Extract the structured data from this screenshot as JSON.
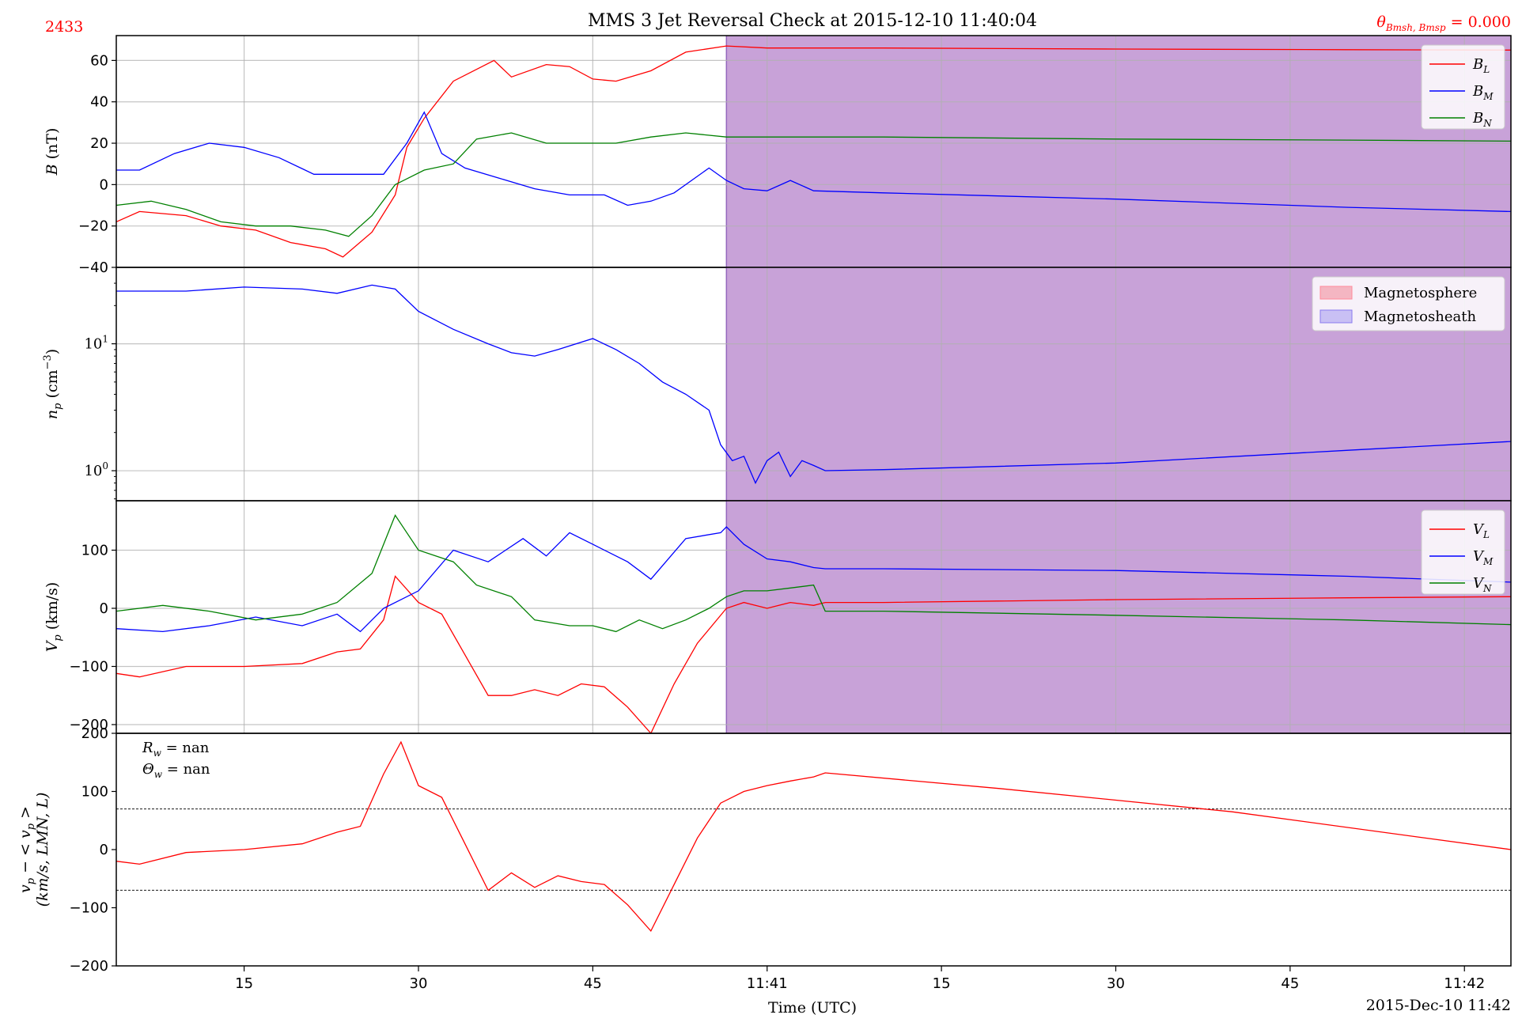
{
  "figure": {
    "title": "MMS 3 Jet Reversal Check at 2015-12-10 11:40:04",
    "corner_left": "2433",
    "corner_right": "θBₘₛₕ,Bₘₛₚ = 0.000",
    "corner_right_main": "θ",
    "corner_right_sub": "Bmsh, Bmsp",
    "corner_right_value": " = 0.000",
    "xlabel": "Time (UTC)",
    "date_label": "2015-Dec-10 11:42",
    "x_ticks": [
      {
        "t": 15,
        "label": "15"
      },
      {
        "t": 30,
        "label": "30"
      },
      {
        "t": 45,
        "label": "45"
      },
      {
        "t": 60,
        "label": "11:41"
      },
      {
        "t": 75,
        "label": "15"
      },
      {
        "t": 90,
        "label": "30"
      },
      {
        "t": 105,
        "label": "45"
      },
      {
        "t": 120,
        "label": "11:42"
      }
    ],
    "colors": {
      "red": "#ff0000",
      "blue": "#0000ff",
      "green": "#008000",
      "sheath": "#c8a2d8",
      "sheath_edge": "#9467bd"
    }
  },
  "chart_data": [
    {
      "type": "line",
      "panel": "B",
      "ylabel": "B (nT)",
      "ylim": [
        -40,
        72
      ],
      "y_ticks": [
        -40,
        -20,
        0,
        20,
        40,
        60
      ],
      "x_unit": "seconds after 11:40:00",
      "xlim": [
        4,
        124
      ],
      "shaded_region": {
        "x": [
          56.5,
          124
        ],
        "label": "Magnetosheath"
      },
      "legend": [
        "B_L",
        "B_M",
        "B_N"
      ],
      "series": [
        {
          "name": "B_L",
          "color": "#ff0000",
          "x": [
            4,
            6,
            8,
            10,
            13,
            16,
            19,
            22,
            23.5,
            26,
            28,
            29,
            30.5,
            33,
            36.5,
            38,
            41,
            43,
            45,
            47,
            50,
            53,
            56.5,
            60,
            63,
            70,
            90,
            110,
            124
          ],
          "y": [
            -18,
            -13,
            -14,
            -15,
            -20,
            -22,
            -28,
            -31,
            -35,
            -23,
            -5,
            18,
            32,
            50,
            60,
            52,
            58,
            57,
            51,
            50,
            55,
            64,
            67,
            66,
            66,
            66,
            65.5,
            65.2,
            65
          ]
        },
        {
          "name": "B_M",
          "color": "#0000ff",
          "x": [
            4,
            6,
            9,
            12,
            15,
            18,
            21,
            24,
            27,
            29,
            30.5,
            32,
            34,
            37,
            40,
            43,
            46,
            48,
            50,
            52,
            55,
            56.5,
            58,
            60,
            62,
            64,
            70,
            90,
            110,
            124
          ],
          "y": [
            7,
            7,
            15,
            20,
            18,
            13,
            5,
            5,
            5,
            20,
            35,
            15,
            8,
            3,
            -2,
            -5,
            -5,
            -10,
            -8,
            -4,
            8,
            2,
            -2,
            -3,
            2,
            -3,
            -4,
            -7,
            -11,
            -13
          ]
        },
        {
          "name": "B_N",
          "color": "#008000",
          "x": [
            4,
            7,
            10,
            13,
            16,
            19,
            22,
            24,
            26,
            28,
            30.5,
            33,
            35,
            38,
            41,
            44,
            47,
            50,
            53,
            56.5,
            60,
            64,
            70,
            90,
            110,
            124
          ],
          "y": [
            -10,
            -8,
            -12,
            -18,
            -20,
            -20,
            -22,
            -25,
            -15,
            0,
            7,
            10,
            22,
            25,
            20,
            20,
            20,
            23,
            25,
            23,
            23,
            23,
            23,
            22,
            21.5,
            21
          ]
        }
      ]
    },
    {
      "type": "line",
      "panel": "np",
      "ylabel": "n_p (cm^-3)",
      "yscale": "log",
      "ylim": [
        0.58,
        40
      ],
      "y_ticks": [
        {
          "v": 1,
          "label": "10^0"
        },
        {
          "v": 10,
          "label": "10^1"
        }
      ],
      "xlim": [
        4,
        124
      ],
      "shaded_region": {
        "x": [
          56.5,
          124
        ],
        "label": "Magnetosheath"
      },
      "legend": [
        "Magnetosphere",
        "Magnetosheath"
      ],
      "series": [
        {
          "name": "n_p",
          "color": "#0000ff",
          "x": [
            4,
            10,
            15,
            20,
            23,
            26,
            28,
            30,
            33,
            36,
            38,
            40,
            42,
            45,
            47,
            49,
            51,
            53,
            55,
            56,
            57,
            58,
            59,
            60,
            61,
            62,
            63,
            64,
            65,
            70,
            90,
            110,
            124
          ],
          "y": [
            26,
            26,
            28,
            27,
            25,
            29,
            27,
            18,
            13,
            10,
            8.5,
            8,
            9,
            11,
            9,
            7,
            5,
            4,
            3,
            1.6,
            1.2,
            1.3,
            0.8,
            1.2,
            1.4,
            0.9,
            1.2,
            1.1,
            1.0,
            1.02,
            1.15,
            1.45,
            1.7
          ]
        }
      ]
    },
    {
      "type": "line",
      "panel": "Vp",
      "ylabel": "V_p (km/s)",
      "ylim": [
        -215,
        185
      ],
      "y_ticks": [
        -200,
        -100,
        0,
        100
      ],
      "xlim": [
        4,
        124
      ],
      "shaded_region": {
        "x": [
          56.5,
          124
        ],
        "label": "Magnetosheath"
      },
      "legend": [
        "V_L",
        "V_M",
        "V_N"
      ],
      "series": [
        {
          "name": "V_L",
          "color": "#ff0000",
          "x": [
            4,
            6,
            10,
            15,
            20,
            23,
            25,
            27,
            28,
            30,
            32,
            34,
            36,
            38,
            40,
            42,
            44,
            46,
            48,
            50,
            52,
            54,
            56.5,
            58,
            60,
            62,
            64,
            65,
            70,
            90,
            110,
            124
          ],
          "y": [
            -112,
            -118,
            -100,
            -100,
            -95,
            -75,
            -70,
            -20,
            55,
            10,
            -10,
            -80,
            -150,
            -150,
            -140,
            -150,
            -130,
            -135,
            -170,
            -215,
            -130,
            -60,
            0,
            10,
            0,
            10,
            5,
            10,
            10,
            15,
            18,
            20
          ]
        },
        {
          "name": "V_M",
          "color": "#0000ff",
          "x": [
            4,
            8,
            12,
            16,
            20,
            23,
            25,
            27,
            30,
            33,
            36,
            39,
            41,
            43,
            45,
            48,
            50,
            53,
            56,
            56.5,
            58,
            60,
            62,
            64,
            65,
            70,
            90,
            110,
            124
          ],
          "y": [
            -35,
            -40,
            -30,
            -15,
            -30,
            -10,
            -40,
            0,
            30,
            100,
            80,
            120,
            90,
            130,
            110,
            80,
            50,
            120,
            130,
            140,
            110,
            85,
            80,
            70,
            68,
            68,
            65,
            55,
            45
          ]
        },
        {
          "name": "V_N",
          "color": "#008000",
          "x": [
            4,
            8,
            12,
            16,
            20,
            23,
            26,
            28,
            30,
            33,
            35,
            38,
            40,
            43,
            45,
            47,
            49,
            51,
            53,
            55,
            56.5,
            58,
            60,
            62,
            64,
            65,
            70,
            90,
            110,
            124
          ],
          "y": [
            -5,
            5,
            -5,
            -20,
            -10,
            10,
            60,
            160,
            100,
            80,
            40,
            20,
            -20,
            -30,
            -30,
            -40,
            -20,
            -35,
            -20,
            0,
            20,
            30,
            30,
            35,
            40,
            -5,
            -5,
            -12,
            -20,
            -28
          ]
        }
      ]
    },
    {
      "type": "line",
      "panel": "residual",
      "ylabel": "v_p - <v_p> (km/s, LMN, L)",
      "ylim": [
        -200,
        200
      ],
      "y_ticks": [
        -200,
        -100,
        0,
        100,
        200
      ],
      "xlim": [
        4,
        124
      ],
      "hlines": [
        70,
        -70
      ],
      "annotations": [
        "R_w = nan",
        "Θ_w = nan"
      ],
      "series": [
        {
          "name": "residual",
          "color": "#ff0000",
          "x": [
            4,
            6,
            10,
            15,
            20,
            23,
            25,
            27,
            28.5,
            30,
            32,
            34,
            36,
            38,
            40,
            42,
            44,
            46,
            48,
            50,
            52,
            54,
            56,
            58,
            60,
            62,
            64,
            65,
            80,
            100,
            124
          ],
          "y": [
            -20,
            -25,
            -5,
            0,
            10,
            30,
            40,
            130,
            185,
            110,
            90,
            10,
            -70,
            -40,
            -65,
            -45,
            -55,
            -60,
            -95,
            -140,
            -60,
            20,
            80,
            100,
            110,
            118,
            125,
            132,
            105,
            65,
            0
          ]
        }
      ]
    }
  ]
}
